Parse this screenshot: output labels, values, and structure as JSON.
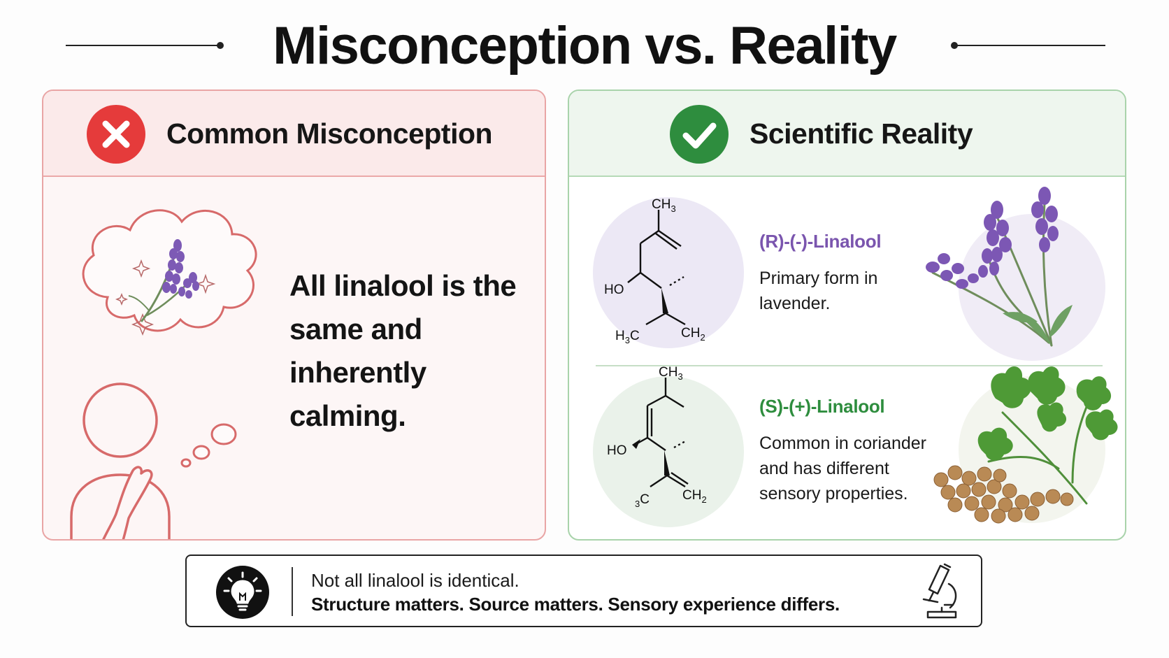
{
  "title": "Misconception vs. Reality",
  "misconception": {
    "heading": "Common Misconception",
    "statement": "All linalool is the same and inherently calming."
  },
  "reality": {
    "heading": "Scientific Reality",
    "isomers": [
      {
        "name": "(R)-(-)-Linalool",
        "description": "Primary form in lavender.",
        "atoms": {
          "top": "CH",
          "top_sub": "3",
          "ho": "HO",
          "left": "H",
          "left_sub": "3",
          "left_end": "C",
          "right": "CH",
          "right_sub": "2"
        }
      },
      {
        "name": "(S)-(+)-Linalool",
        "description": "Common in coriander and has different sensory properties.",
        "atoms": {
          "top": "CH",
          "top_sub": "3",
          "ho": "HO",
          "left_sub": "3",
          "left_end": "C",
          "right": "CH",
          "right_sub": "2"
        }
      }
    ]
  },
  "footer": {
    "line1": "Not all linalool is identical.",
    "line2": "Structure matters. Source matters. Sensory experience differs."
  },
  "colors": {
    "misconception_accent": "#e53b3b",
    "reality_accent": "#2e8d3e",
    "r_isomer": "#7a55ae",
    "s_isomer": "#2e8d3e"
  },
  "icons": [
    "x-icon",
    "check-icon",
    "thought-bubble-icon",
    "person-icon",
    "lavender-icon",
    "coriander-icon",
    "lightbulb-icon",
    "microscope-icon"
  ]
}
